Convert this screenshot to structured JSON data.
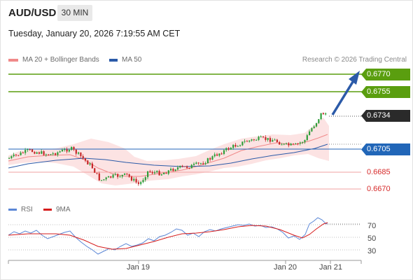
{
  "header": {
    "pair": "AUD/USD",
    "timeframe": "30 MIN",
    "timestamp": "Tuesday, January 20, 2026 7:19:55 AM CET"
  },
  "legend": {
    "ma20": {
      "label": "MA 20 + Bollinger Bands",
      "color": "#f08a8a"
    },
    "ma50": {
      "label": "MA 50",
      "color": "#2b5aa8"
    },
    "copyright": "Research © 2026 Trading Central"
  },
  "levels": {
    "r2": {
      "value": "0.6770",
      "color": "#5a9e0f"
    },
    "r1": {
      "value": "0.6755",
      "color": "#5a9e0f"
    },
    "last": {
      "value": "0.6734",
      "color": "#2a2a2a"
    },
    "pivot": {
      "value": "0.6705",
      "color": "#2166b8"
    },
    "s1": {
      "value": "0.6685",
      "color": "#d62a2a"
    },
    "s2": {
      "value": "0.6670",
      "color": "#d62a2a"
    }
  },
  "rsi_panel": {
    "rsi_label": "RSI",
    "ma_label": "9MA",
    "rsi_color": "#5b87d6",
    "ma_color": "#d61c1c",
    "ticks": [
      "70",
      "50",
      "30"
    ]
  },
  "x_axis": {
    "labels": [
      "Jan 19",
      "Jan 20",
      "Jan 21"
    ]
  },
  "colors": {
    "bull": "#2e9e3a",
    "bear": "#c62828",
    "arrow": "#2b5aa8"
  }
}
